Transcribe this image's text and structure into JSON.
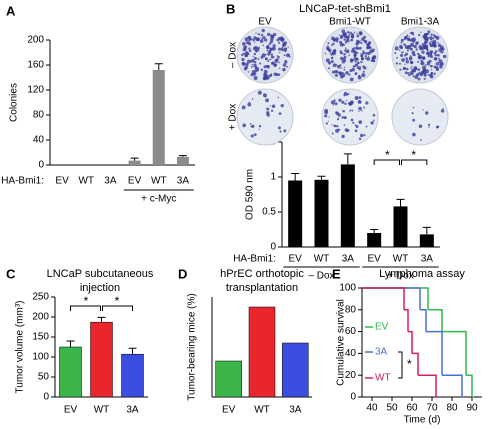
{
  "chart_data": [
    {
      "type": "bar",
      "panel": "A",
      "ylabel": "Colonies",
      "row_label": "HA-Bmi1:",
      "categories": [
        "EV",
        "WT",
        "3A",
        "EV",
        "WT",
        "3A"
      ],
      "groups": [
        "+ c-Myc"
      ],
      "values": [
        0,
        0,
        0,
        7,
        152,
        13
      ],
      "errors": [
        null,
        null,
        null,
        4,
        10,
        2
      ],
      "color": "#8c8c8c",
      "ylim": [
        0,
        200
      ],
      "yticks": [
        0,
        40,
        80,
        120,
        160,
        200
      ]
    },
    {
      "type": "bar",
      "panel": "B",
      "title": "LNCaP-tet-shBmi1",
      "image_columns": [
        "EV",
        "Bmi1-WT",
        "Bmi1-3A"
      ],
      "image_rows": [
        "– Dox",
        "+ Dox"
      ],
      "ylabel": "OD 590 nm",
      "row_label": "HA-Bmi1:",
      "categories": [
        "EV",
        "WT",
        "3A",
        "EV",
        "WT",
        "3A"
      ],
      "groups": [
        "– Dox",
        "+ Dox"
      ],
      "values": [
        0.95,
        0.96,
        1.18,
        0.2,
        0.58,
        0.18
      ],
      "errors": [
        0.1,
        0.05,
        0.15,
        0.05,
        0.1,
        0.1
      ],
      "color": "#000000",
      "ylim": [
        0,
        1.5
      ],
      "yticks": [
        0,
        0.5,
        1,
        1.5
      ],
      "annotations": [
        "*",
        "*"
      ]
    },
    {
      "type": "bar",
      "panel": "C",
      "title": [
        "LNCaP subcutaneous",
        "injection"
      ],
      "ylabel": "Tumor volume (mm³)",
      "categories": [
        "EV",
        "WT",
        "3A"
      ],
      "values": [
        125,
        187,
        107
      ],
      "errors": [
        15,
        12,
        15
      ],
      "colors": [
        "#3bb54a",
        "#e8262b",
        "#3a4ee0"
      ],
      "ylim": [
        0,
        250
      ],
      "yticks": [
        0,
        50,
        100,
        150,
        200,
        250
      ],
      "annotations": [
        "*",
        "*"
      ]
    },
    {
      "type": "bar",
      "panel": "D",
      "title": [
        "hPrEC orthotopic",
        "transplantation"
      ],
      "ylabel": "Tumor-bearing mice (%)",
      "categories": [
        "EV",
        "WT",
        "3A"
      ],
      "values": [
        18,
        45,
        27
      ],
      "colors": [
        "#3bb54a",
        "#e8262b",
        "#3a4ee0"
      ],
      "ylim": [
        0,
        50
      ]
    },
    {
      "type": "step",
      "panel": "E",
      "title": [
        "Lymphoma assay"
      ],
      "xlabel": "Time (d)",
      "ylabel": "Cumulative survival",
      "xlim": [
        35,
        95
      ],
      "xticks": [
        40,
        50,
        60,
        70,
        80,
        90
      ],
      "ylim": [
        0,
        100
      ],
      "yticks": [
        0,
        20,
        40,
        60,
        80,
        100
      ],
      "series": [
        {
          "name": "EV",
          "color": "#33b84a",
          "x": [
            35,
            68,
            75,
            87,
            90
          ],
          "values": [
            100,
            80,
            60,
            20,
            0
          ]
        },
        {
          "name": "3A",
          "color": "#4a6fd6",
          "x": [
            35,
            64,
            67,
            75,
            85
          ],
          "values": [
            100,
            80,
            60,
            20,
            0
          ]
        },
        {
          "name": "WT",
          "color": "#d6205a",
          "x": [
            35,
            56,
            58,
            60,
            63,
            72
          ],
          "values": [
            100,
            80,
            60,
            40,
            20,
            0
          ]
        }
      ],
      "annotations": [
        "*"
      ]
    }
  ]
}
